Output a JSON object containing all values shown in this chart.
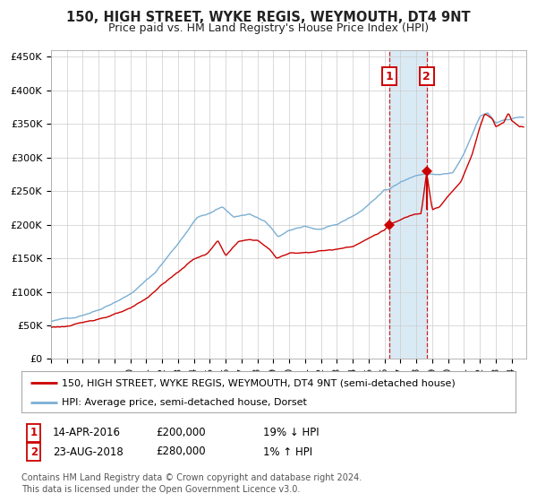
{
  "title": "150, HIGH STREET, WYKE REGIS, WEYMOUTH, DT4 9NT",
  "subtitle": "Price paid vs. HM Land Registry's House Price Index (HPI)",
  "legend_line1": "150, HIGH STREET, WYKE REGIS, WEYMOUTH, DT4 9NT (semi-detached house)",
  "legend_line2": "HPI: Average price, semi-detached house, Dorset",
  "annotation1_date": "14-APR-2016",
  "annotation1_price": "£200,000",
  "annotation1_change": "19% ↓ HPI",
  "annotation2_date": "23-AUG-2018",
  "annotation2_price": "£280,000",
  "annotation2_change": "1% ↑ HPI",
  "footer": "Contains HM Land Registry data © Crown copyright and database right 2024.\nThis data is licensed under the Open Government Licence v3.0.",
  "xlim_start": 1995.0,
  "xlim_end": 2024.92,
  "ylim_bottom": 0,
  "ylim_top": 460000,
  "yticks": [
    0,
    50000,
    100000,
    150000,
    200000,
    250000,
    300000,
    350000,
    400000,
    450000
  ],
  "ytick_labels": [
    "£0",
    "£50K",
    "£100K",
    "£150K",
    "£200K",
    "£250K",
    "£300K",
    "£350K",
    "£400K",
    "£450K"
  ],
  "sale1_x": 2016.28,
  "sale1_y": 200000,
  "sale2_x": 2018.65,
  "sale2_y": 280000,
  "sale2_stem_bottom": 223000,
  "red_line_color": "#cc0000",
  "blue_line_color": "#7bafd4",
  "highlight_color": "#daeaf5",
  "grid_color": "#cccccc",
  "background_color": "#ffffff",
  "text_color": "#222222",
  "box_color": "#cc0000",
  "title_fontsize": 10.5,
  "subtitle_fontsize": 9,
  "tick_fontsize": 8,
  "legend_fontsize": 8,
  "ann_fontsize": 8.5,
  "footer_fontsize": 7
}
